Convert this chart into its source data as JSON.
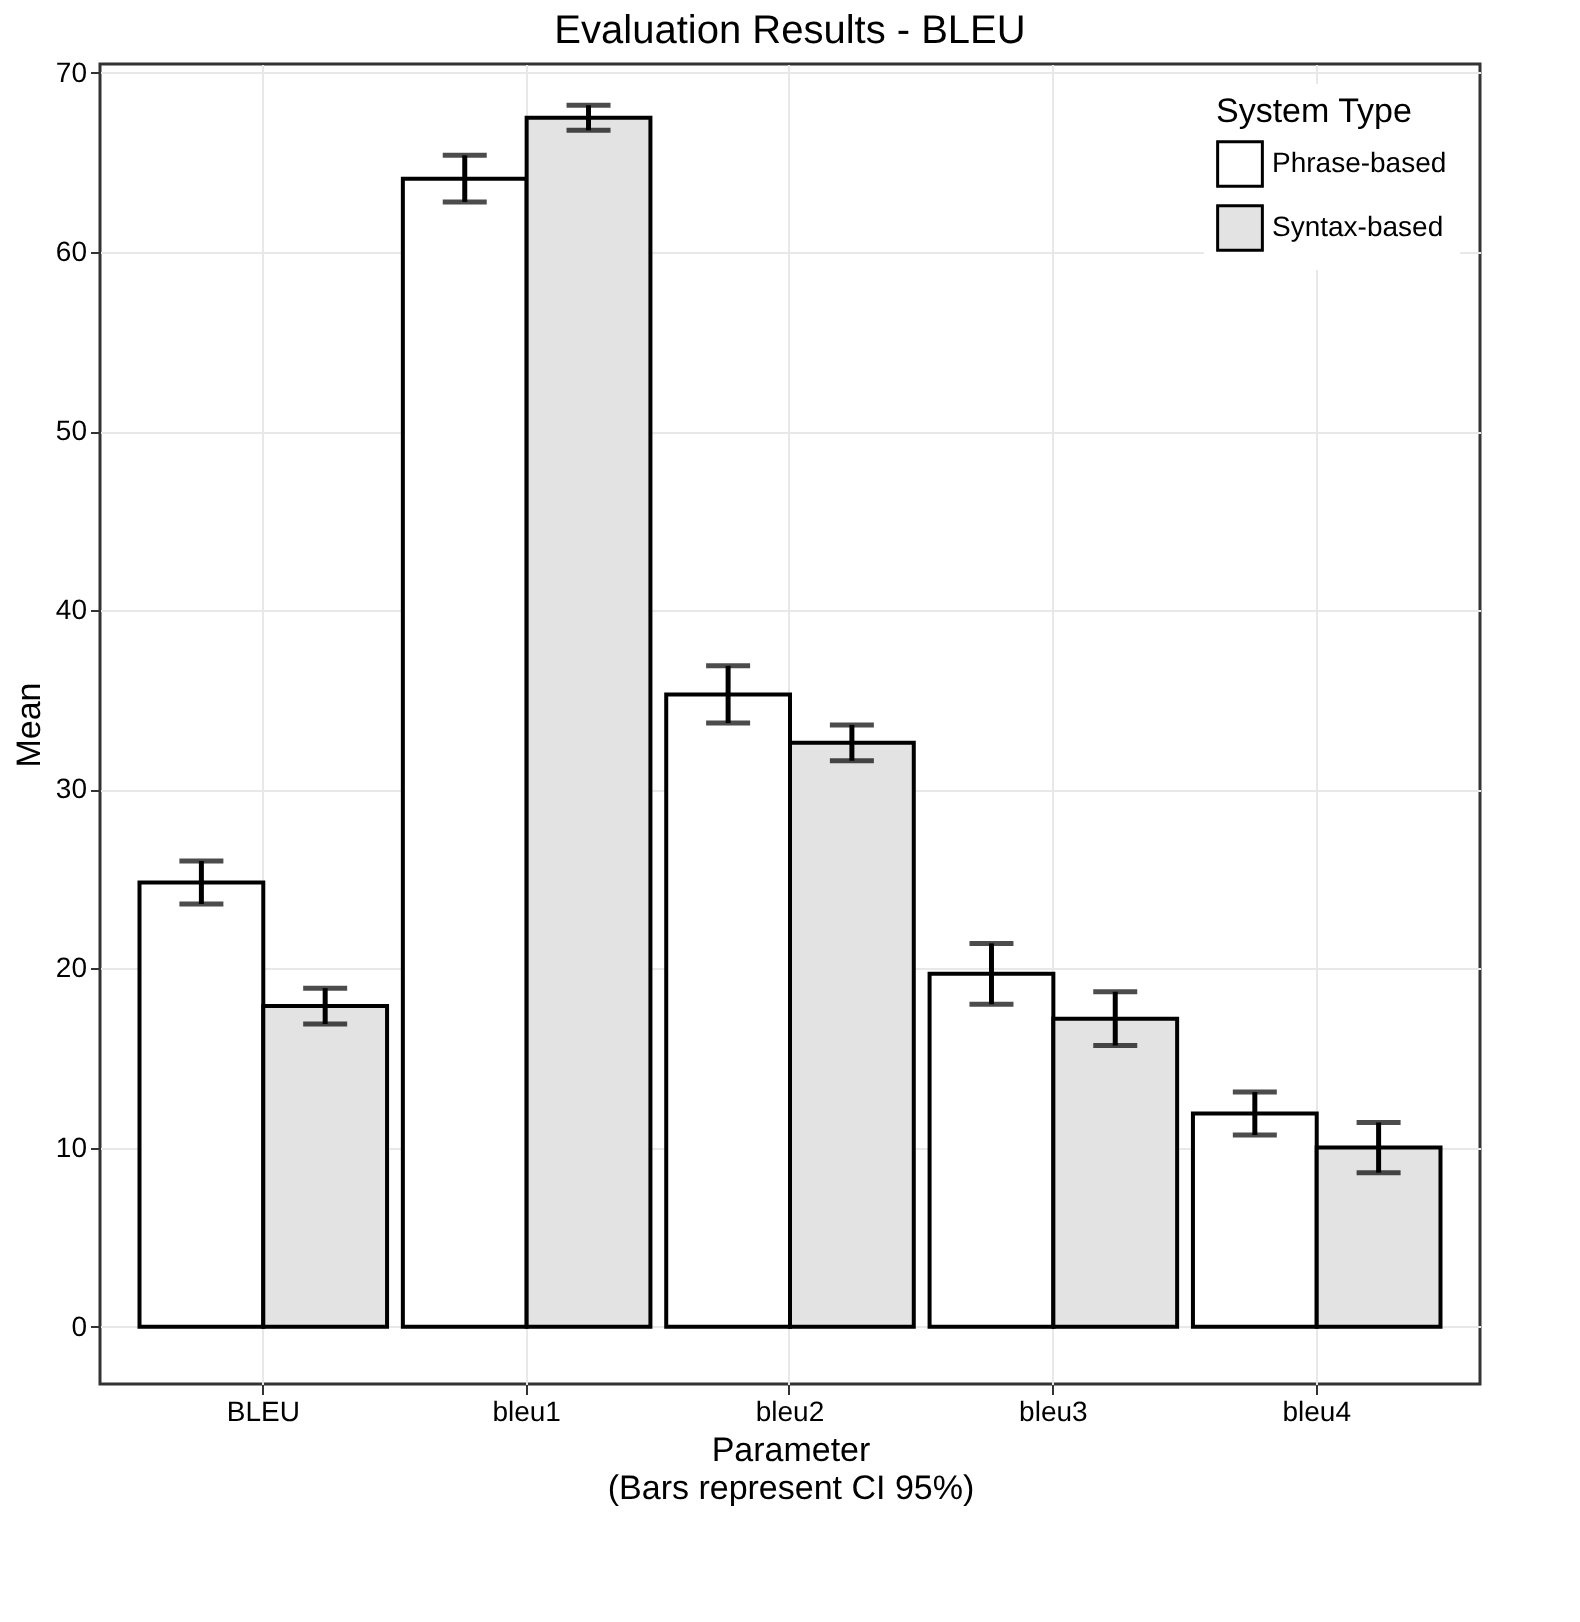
{
  "chart_data": {
    "type": "bar",
    "title": "Evaluation Results - BLEU",
    "xlabel": "Parameter",
    "ylabel": "Mean",
    "legend_title": "System Type",
    "annotations": [
      "(Bars represent CI 95%)"
    ],
    "categories": [
      "BLEU",
      "bleu1",
      "bleu2",
      "bleu3",
      "bleu4"
    ],
    "series": [
      {
        "name": "Phrase-based",
        "color": "#ffffff",
        "values": [
          24.8,
          64.1,
          35.3,
          19.7,
          11.9
        ],
        "errors": [
          1.2,
          1.3,
          1.6,
          1.7,
          1.2
        ]
      },
      {
        "name": "Syntax-based",
        "color": "#e3e3e3",
        "values": [
          17.9,
          67.5,
          32.6,
          17.2,
          10.0
        ],
        "errors": [
          1.0,
          0.7,
          1.0,
          1.5,
          1.4
        ]
      }
    ],
    "ylim": [
      -3.2,
      70.5
    ],
    "yticks": [
      0,
      10,
      20,
      30,
      40,
      50,
      60,
      70
    ],
    "grid": true,
    "legend": "top right"
  }
}
